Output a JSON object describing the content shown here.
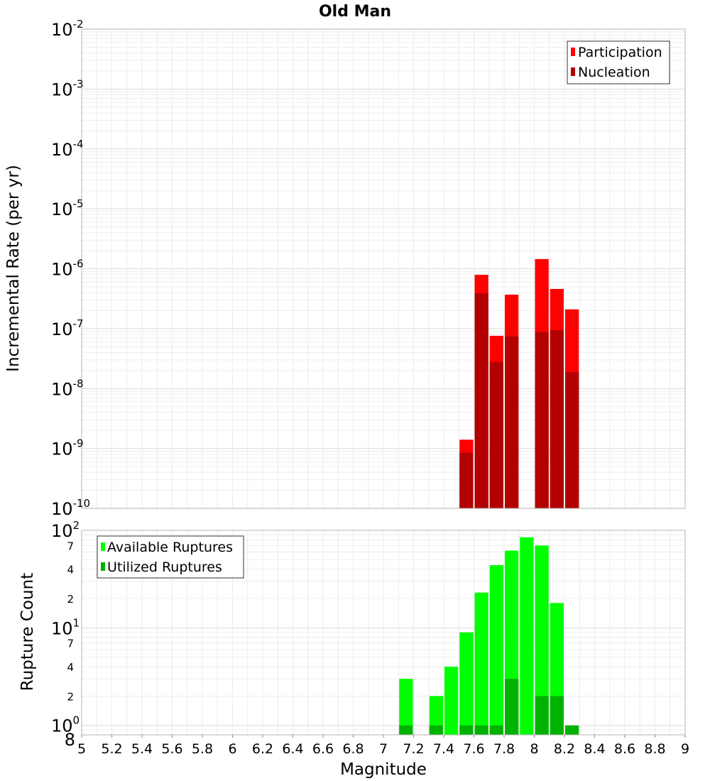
{
  "chart_data": [
    {
      "type": "bar",
      "title": "Old Man",
      "xlabel": "Magnitude",
      "ylabel": "Incremental Rate (per yr)",
      "yscale": "log",
      "ylim": [
        1e-10,
        0.01
      ],
      "xlim": [
        5,
        9
      ],
      "y_tick_labels": [
        {
          "base": "10",
          "exp": "-2"
        },
        {
          "base": "10",
          "exp": "-3"
        },
        {
          "base": "10",
          "exp": "-4"
        },
        {
          "base": "10",
          "exp": "-5"
        },
        {
          "base": "10",
          "exp": "-6"
        },
        {
          "base": "10",
          "exp": "-7"
        },
        {
          "base": "10",
          "exp": "-8"
        },
        {
          "base": "10",
          "exp": "-9"
        },
        {
          "base": "10",
          "exp": "-10"
        }
      ],
      "legend": {
        "position": "top-right",
        "entries": [
          "Participation",
          "Nucleation"
        ]
      },
      "colors": {
        "Participation": "#ff0000",
        "Nucleation": "#b30000"
      },
      "x": [
        7.55,
        7.65,
        7.75,
        7.85,
        8.05,
        8.15,
        8.25
      ],
      "series": [
        {
          "name": "Participation",
          "values": [
            1.4e-09,
            7.9e-07,
            7.6e-08,
            3.7e-07,
            1.45e-06,
            4.6e-07,
            2.1e-07
          ]
        },
        {
          "name": "Nucleation",
          "values": [
            8.5e-10,
            3.9e-07,
            2.8e-08,
            7.4e-08,
            8.8e-08,
            9.4e-08,
            1.9e-08
          ]
        }
      ]
    },
    {
      "type": "bar",
      "title": "",
      "xlabel": "Magnitude",
      "ylabel": "Rupture Count",
      "yscale": "log",
      "ylim": [
        0.8,
        100
      ],
      "xlim": [
        5,
        9
      ],
      "x_tick_labels": [
        "5",
        "5.2",
        "5.4",
        "5.6",
        "5.8",
        "6",
        "6.2",
        "6.4",
        "6.6",
        "6.8",
        "7",
        "7.2",
        "7.4",
        "7.6",
        "7.8",
        "8",
        "8.2",
        "8.4",
        "8.6",
        "8.8",
        "9"
      ],
      "y_decade_labels": [
        {
          "value": 100,
          "base": "10",
          "exp": "2"
        },
        {
          "value": 10,
          "base": "10",
          "exp": "1"
        },
        {
          "value": 1,
          "base": "10",
          "exp": "0"
        }
      ],
      "y_minor_labels": [
        {
          "value": 70,
          "label": "7"
        },
        {
          "value": 40,
          "label": "4"
        },
        {
          "value": 20,
          "label": "2"
        },
        {
          "value": 7,
          "label": "7"
        },
        {
          "value": 4,
          "label": "4"
        },
        {
          "value": 2,
          "label": "2"
        },
        {
          "value": 0.8,
          "label": "8"
        }
      ],
      "legend": {
        "position": "top-left",
        "entries": [
          "Available Ruptures",
          "Utilized Ruptures"
        ]
      },
      "colors": {
        "Available Ruptures": "#00ff00",
        "Utilized Ruptures": "#00b300"
      },
      "x": [
        7.15,
        7.25,
        7.35,
        7.45,
        7.55,
        7.65,
        7.75,
        7.85,
        7.95,
        8.05,
        8.15,
        8.25
      ],
      "series": [
        {
          "name": "Available Ruptures",
          "values": [
            3,
            0,
            2,
            4,
            9,
            23,
            44,
            62,
            85,
            70,
            18,
            0
          ]
        },
        {
          "name": "Utilized Ruptures",
          "values": [
            1,
            0,
            1,
            0,
            1,
            1,
            1,
            3,
            0,
            2,
            2,
            1
          ]
        }
      ]
    }
  ]
}
